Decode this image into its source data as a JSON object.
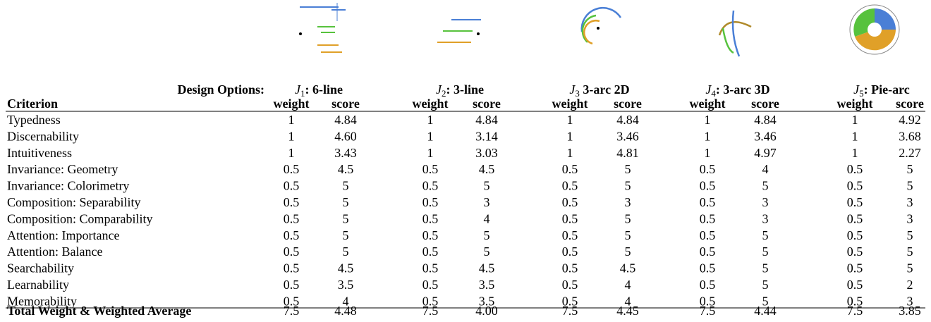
{
  "header": {
    "design_options": "Design Options:",
    "criterion": "Criterion",
    "column_labels": [
      "weight",
      "score"
    ]
  },
  "options": [
    {
      "symbol": "J",
      "index": "1",
      "name": ": 6-line"
    },
    {
      "symbol": "J",
      "index": "2",
      "name": ": 3-line"
    },
    {
      "symbol": "J",
      "index": "3",
      "name": " 3-arc 2D"
    },
    {
      "symbol": "J",
      "index": "4",
      "name": ": 3-arc 3D"
    },
    {
      "symbol": "J",
      "index": "5",
      "name": ": Pie-arc"
    }
  ],
  "rows": [
    {
      "criterion": "Typedness",
      "cells": [
        "1",
        "4.84",
        "1",
        "4.84",
        "1",
        "4.84",
        "1",
        "4.84",
        "1",
        "4.92"
      ]
    },
    {
      "criterion": "Discernability",
      "cells": [
        "1",
        "4.60",
        "1",
        "3.14",
        "1",
        "3.46",
        "1",
        "3.46",
        "1",
        "3.68"
      ]
    },
    {
      "criterion": "Intuitiveness",
      "cells": [
        "1",
        "3.43",
        "1",
        "3.03",
        "1",
        "4.81",
        "1",
        "4.97",
        "1",
        "2.27"
      ]
    },
    {
      "criterion": "Invariance: Geometry",
      "cells": [
        "0.5",
        "4.5",
        "0.5",
        "4.5",
        "0.5",
        "5",
        "0.5",
        "4",
        "0.5",
        "5"
      ]
    },
    {
      "criterion": "Invariance: Colorimetry",
      "cells": [
        "0.5",
        "5",
        "0.5",
        "5",
        "0.5",
        "5",
        "0.5",
        "5",
        "0.5",
        "5"
      ]
    },
    {
      "criterion": "Composition: Separability",
      "cells": [
        "0.5",
        "5",
        "0.5",
        "3",
        "0.5",
        "3",
        "0.5",
        "3",
        "0.5",
        "3"
      ]
    },
    {
      "criterion": "Composition: Comparability",
      "cells": [
        "0.5",
        "5",
        "0.5",
        "4",
        "0.5",
        "5",
        "0.5",
        "3",
        "0.5",
        "3"
      ]
    },
    {
      "criterion": "Attention: Importance",
      "cells": [
        "0.5",
        "5",
        "0.5",
        "5",
        "0.5",
        "5",
        "0.5",
        "5",
        "0.5",
        "5"
      ]
    },
    {
      "criterion": "Attention: Balance",
      "cells": [
        "0.5",
        "5",
        "0.5",
        "5",
        "0.5",
        "5",
        "0.5",
        "5",
        "0.5",
        "5"
      ]
    },
    {
      "criterion": "Searchability",
      "cells": [
        "0.5",
        "4.5",
        "0.5",
        "4.5",
        "0.5",
        "4.5",
        "0.5",
        "5",
        "0.5",
        "5"
      ]
    },
    {
      "criterion": "Learnability",
      "cells": [
        "0.5",
        "3.5",
        "0.5",
        "3.5",
        "0.5",
        "4",
        "0.5",
        "5",
        "0.5",
        "2"
      ]
    },
    {
      "criterion": "Memorability",
      "cells": [
        "0.5",
        "4",
        "0.5",
        "3.5",
        "0.5",
        "4",
        "0.5",
        "5",
        "0.5",
        "3"
      ]
    }
  ],
  "total": {
    "criterion": "Total Weight & Weighted Average",
    "cells": [
      "7.5",
      "4.48",
      "7.5",
      "4.00",
      "7.5",
      "4.45",
      "7.5",
      "4.44",
      "7.5",
      "3.85"
    ]
  }
}
